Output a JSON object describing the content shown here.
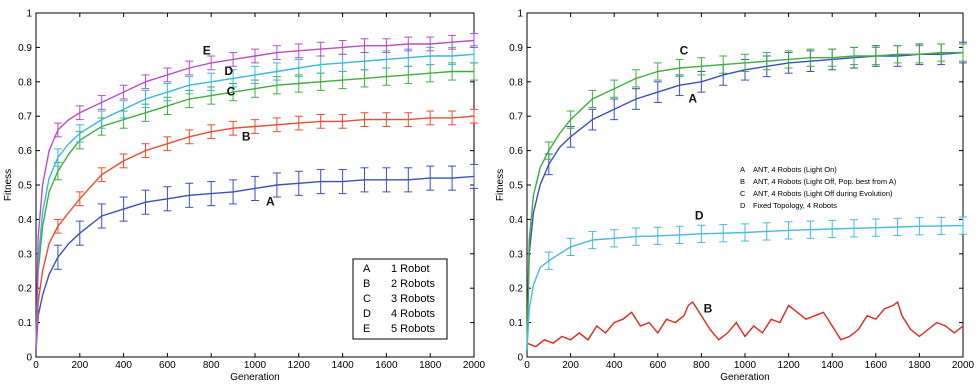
{
  "chart_data": [
    {
      "type": "line",
      "xlabel": "Generation",
      "ylabel": "Fitness",
      "xlim": [
        0,
        2000
      ],
      "ylim": [
        0,
        1
      ],
      "xticks": [
        0,
        200,
        400,
        600,
        800,
        1000,
        1200,
        1400,
        1600,
        1800,
        2000
      ],
      "yticks": [
        0,
        0.1,
        0.2,
        0.3,
        0.4,
        0.5,
        0.6,
        0.7,
        0.8,
        0.9,
        1
      ],
      "grid": false,
      "legend_position": "bottom-right",
      "legend": [
        {
          "key": "A",
          "text": "1  Robot"
        },
        {
          "key": "B",
          "text": "2  Robots"
        },
        {
          "key": "C",
          "text": "3  Robots"
        },
        {
          "key": "D",
          "text": "4  Robots"
        },
        {
          "key": "E",
          "text": "5  Robots"
        }
      ],
      "series": [
        {
          "name": "A",
          "color": "#3a4fc2",
          "label_at": [
            1070,
            0.44
          ],
          "x": [
            0,
            10,
            30,
            60,
            100,
            150,
            200,
            300,
            400,
            500,
            600,
            700,
            800,
            900,
            1000,
            1100,
            1200,
            1300,
            1400,
            1500,
            1600,
            1700,
            1800,
            1900,
            2000
          ],
          "y": [
            0.02,
            0.12,
            0.18,
            0.24,
            0.29,
            0.33,
            0.36,
            0.41,
            0.43,
            0.45,
            0.46,
            0.47,
            0.475,
            0.48,
            0.49,
            0.5,
            0.505,
            0.51,
            0.51,
            0.515,
            0.515,
            0.515,
            0.52,
            0.52,
            0.525
          ],
          "error_x": [
            100,
            200,
            300,
            400,
            500,
            600,
            700,
            800,
            900,
            1000,
            1100,
            1200,
            1300,
            1400,
            1500,
            1600,
            1700,
            1800,
            1900,
            2000
          ],
          "error": 0.035
        },
        {
          "name": "B",
          "color": "#f04a30",
          "label_at": [
            960,
            0.63
          ],
          "x": [
            0,
            10,
            30,
            60,
            100,
            150,
            200,
            300,
            400,
            500,
            600,
            700,
            800,
            900,
            1000,
            1100,
            1200,
            1300,
            1400,
            1500,
            1600,
            1700,
            1800,
            1900,
            2000
          ],
          "y": [
            0.02,
            0.16,
            0.25,
            0.33,
            0.38,
            0.42,
            0.46,
            0.53,
            0.57,
            0.6,
            0.62,
            0.64,
            0.655,
            0.665,
            0.67,
            0.675,
            0.68,
            0.685,
            0.685,
            0.69,
            0.69,
            0.69,
            0.695,
            0.695,
            0.7
          ],
          "error_x": [
            100,
            200,
            300,
            400,
            500,
            600,
            700,
            800,
            900,
            1000,
            1100,
            1200,
            1300,
            1400,
            1500,
            1600,
            1700,
            1800,
            1900,
            2000
          ],
          "error": 0.02
        },
        {
          "name": "C",
          "color": "#3fae3f",
          "label_at": [
            890,
            0.76
          ],
          "x": [
            0,
            10,
            30,
            60,
            100,
            150,
            200,
            300,
            400,
            500,
            600,
            700,
            800,
            900,
            1000,
            1100,
            1200,
            1300,
            1400,
            1500,
            1600,
            1700,
            1800,
            1900,
            2000
          ],
          "y": [
            0.02,
            0.25,
            0.38,
            0.48,
            0.54,
            0.59,
            0.63,
            0.67,
            0.69,
            0.71,
            0.73,
            0.75,
            0.76,
            0.77,
            0.78,
            0.79,
            0.795,
            0.8,
            0.805,
            0.81,
            0.815,
            0.82,
            0.825,
            0.83,
            0.83
          ],
          "error_x": [
            100,
            200,
            300,
            400,
            500,
            600,
            700,
            800,
            900,
            1000,
            1100,
            1200,
            1300,
            1400,
            1500,
            1600,
            1700,
            1800,
            1900,
            2000
          ],
          "error": 0.025
        },
        {
          "name": "D",
          "color": "#38b8dc",
          "label_at": [
            880,
            0.82
          ],
          "x": [
            0,
            10,
            30,
            60,
            100,
            150,
            200,
            300,
            400,
            500,
            600,
            700,
            800,
            900,
            1000,
            1100,
            1200,
            1300,
            1400,
            1500,
            1600,
            1700,
            1800,
            1900,
            2000
          ],
          "y": [
            0.02,
            0.28,
            0.42,
            0.52,
            0.58,
            0.62,
            0.65,
            0.69,
            0.72,
            0.75,
            0.77,
            0.79,
            0.8,
            0.81,
            0.82,
            0.83,
            0.84,
            0.85,
            0.855,
            0.86,
            0.865,
            0.87,
            0.875,
            0.875,
            0.88
          ],
          "error_x": [
            100,
            200,
            300,
            400,
            500,
            600,
            700,
            800,
            900,
            1000,
            1100,
            1200,
            1300,
            1400,
            1500,
            1600,
            1700,
            1800,
            1900,
            2000
          ],
          "error": 0.025
        },
        {
          "name": "E",
          "color": "#b84dc4",
          "label_at": [
            780,
            0.88
          ],
          "x": [
            0,
            10,
            30,
            60,
            100,
            150,
            200,
            300,
            400,
            500,
            600,
            700,
            800,
            900,
            1000,
            1100,
            1200,
            1300,
            1400,
            1500,
            1600,
            1700,
            1800,
            1900,
            2000
          ],
          "y": [
            0.02,
            0.35,
            0.5,
            0.6,
            0.66,
            0.69,
            0.71,
            0.74,
            0.77,
            0.8,
            0.82,
            0.84,
            0.855,
            0.865,
            0.875,
            0.885,
            0.89,
            0.895,
            0.9,
            0.905,
            0.905,
            0.91,
            0.91,
            0.915,
            0.92
          ],
          "error_x": [
            100,
            200,
            300,
            400,
            500,
            600,
            700,
            800,
            900,
            1000,
            1100,
            1200,
            1300,
            1400,
            1500,
            1600,
            1700,
            1800,
            1900,
            2000
          ],
          "error": 0.02
        }
      ]
    },
    {
      "type": "line",
      "xlabel": "Generation",
      "ylabel": "Fitness",
      "xlim": [
        0,
        2000
      ],
      "ylim": [
        0,
        1
      ],
      "xticks": [
        0,
        200,
        400,
        600,
        800,
        1000,
        1200,
        1400,
        1600,
        1800,
        2000
      ],
      "yticks": [
        0,
        0.1,
        0.2,
        0.3,
        0.4,
        0.5,
        0.6,
        0.7,
        0.8,
        0.9,
        1
      ],
      "grid": false,
      "legend_position": "right",
      "legend": [
        {
          "key": "A",
          "text": "ANT, 4 Robots (Light On)"
        },
        {
          "key": "B",
          "text": "ANT, 4 Robots (Light Off, Pop. best from  A)"
        },
        {
          "key": "C",
          "text": "ANT, 4 Robots (Light Off during Evolution)"
        },
        {
          "key": "D",
          "text": "Fixed Topology, 4 Robots"
        }
      ],
      "series": [
        {
          "name": "A",
          "color": "#3a4fc2",
          "label_at": [
            760,
            0.74
          ],
          "x": [
            0,
            10,
            30,
            60,
            100,
            150,
            200,
            300,
            400,
            500,
            600,
            700,
            800,
            900,
            1000,
            1100,
            1200,
            1300,
            1400,
            1500,
            1600,
            1700,
            1800,
            1900,
            2000
          ],
          "y": [
            0.02,
            0.3,
            0.42,
            0.5,
            0.56,
            0.61,
            0.64,
            0.69,
            0.72,
            0.75,
            0.77,
            0.79,
            0.8,
            0.82,
            0.835,
            0.845,
            0.855,
            0.86,
            0.865,
            0.87,
            0.875,
            0.875,
            0.88,
            0.88,
            0.885
          ],
          "error_x": [
            100,
            200,
            300,
            400,
            500,
            600,
            700,
            800,
            900,
            1000,
            1100,
            1200,
            1300,
            1400,
            1500,
            1600,
            1700,
            1800,
            1900,
            2000
          ],
          "error": 0.03
        },
        {
          "name": "B",
          "color": "#e3261c",
          "label_at": [
            830,
            0.13
          ],
          "x": [
            0,
            40,
            80,
            120,
            160,
            200,
            240,
            280,
            320,
            360,
            400,
            440,
            480,
            520,
            560,
            600,
            640,
            680,
            720,
            740,
            760,
            800,
            840,
            880,
            920,
            960,
            1000,
            1040,
            1080,
            1120,
            1160,
            1200,
            1240,
            1280,
            1320,
            1360,
            1400,
            1440,
            1480,
            1520,
            1560,
            1600,
            1640,
            1680,
            1700,
            1720,
            1760,
            1800,
            1840,
            1880,
            1920,
            1960,
            2000
          ],
          "y": [
            0.04,
            0.03,
            0.05,
            0.04,
            0.06,
            0.05,
            0.07,
            0.05,
            0.09,
            0.07,
            0.1,
            0.11,
            0.13,
            0.09,
            0.1,
            0.07,
            0.11,
            0.1,
            0.12,
            0.15,
            0.16,
            0.12,
            0.08,
            0.05,
            0.07,
            0.1,
            0.06,
            0.09,
            0.07,
            0.11,
            0.1,
            0.15,
            0.13,
            0.11,
            0.12,
            0.13,
            0.09,
            0.05,
            0.06,
            0.08,
            0.12,
            0.11,
            0.14,
            0.15,
            0.16,
            0.12,
            0.08,
            0.06,
            0.08,
            0.1,
            0.09,
            0.07,
            0.09
          ],
          "error_x": [],
          "error": 0
        },
        {
          "name": "C",
          "color": "#3fae3f",
          "label_at": [
            720,
            0.88
          ],
          "x": [
            0,
            10,
            30,
            60,
            100,
            150,
            200,
            300,
            400,
            500,
            600,
            700,
            800,
            900,
            1000,
            1100,
            1200,
            1300,
            1400,
            1500,
            1600,
            1700,
            1800,
            1900,
            2000
          ],
          "y": [
            0.02,
            0.34,
            0.47,
            0.55,
            0.6,
            0.65,
            0.69,
            0.75,
            0.78,
            0.81,
            0.83,
            0.84,
            0.845,
            0.85,
            0.855,
            0.86,
            0.865,
            0.87,
            0.87,
            0.875,
            0.875,
            0.88,
            0.88,
            0.885,
            0.885
          ],
          "error_x": [
            100,
            200,
            300,
            400,
            500,
            600,
            700,
            800,
            900,
            1000,
            1100,
            1200,
            1300,
            1400,
            1500,
            1600,
            1700,
            1800,
            1900,
            2000
          ],
          "error": 0.025
        },
        {
          "name": "D",
          "color": "#46b9e0",
          "label_at": [
            790,
            0.4
          ],
          "x": [
            0,
            10,
            30,
            60,
            100,
            150,
            200,
            300,
            400,
            500,
            600,
            700,
            800,
            900,
            1000,
            1100,
            1200,
            1300,
            1400,
            1500,
            1600,
            1700,
            1800,
            1900,
            2000
          ],
          "y": [
            0.02,
            0.14,
            0.21,
            0.26,
            0.28,
            0.3,
            0.32,
            0.34,
            0.345,
            0.35,
            0.352,
            0.355,
            0.358,
            0.36,
            0.362,
            0.365,
            0.368,
            0.37,
            0.372,
            0.374,
            0.376,
            0.378,
            0.38,
            0.381,
            0.382
          ],
          "error_x": [
            100,
            200,
            300,
            400,
            500,
            600,
            700,
            800,
            900,
            1000,
            1100,
            1200,
            1300,
            1400,
            1500,
            1600,
            1700,
            1800,
            1900,
            2000
          ],
          "error": 0.025
        }
      ]
    }
  ]
}
